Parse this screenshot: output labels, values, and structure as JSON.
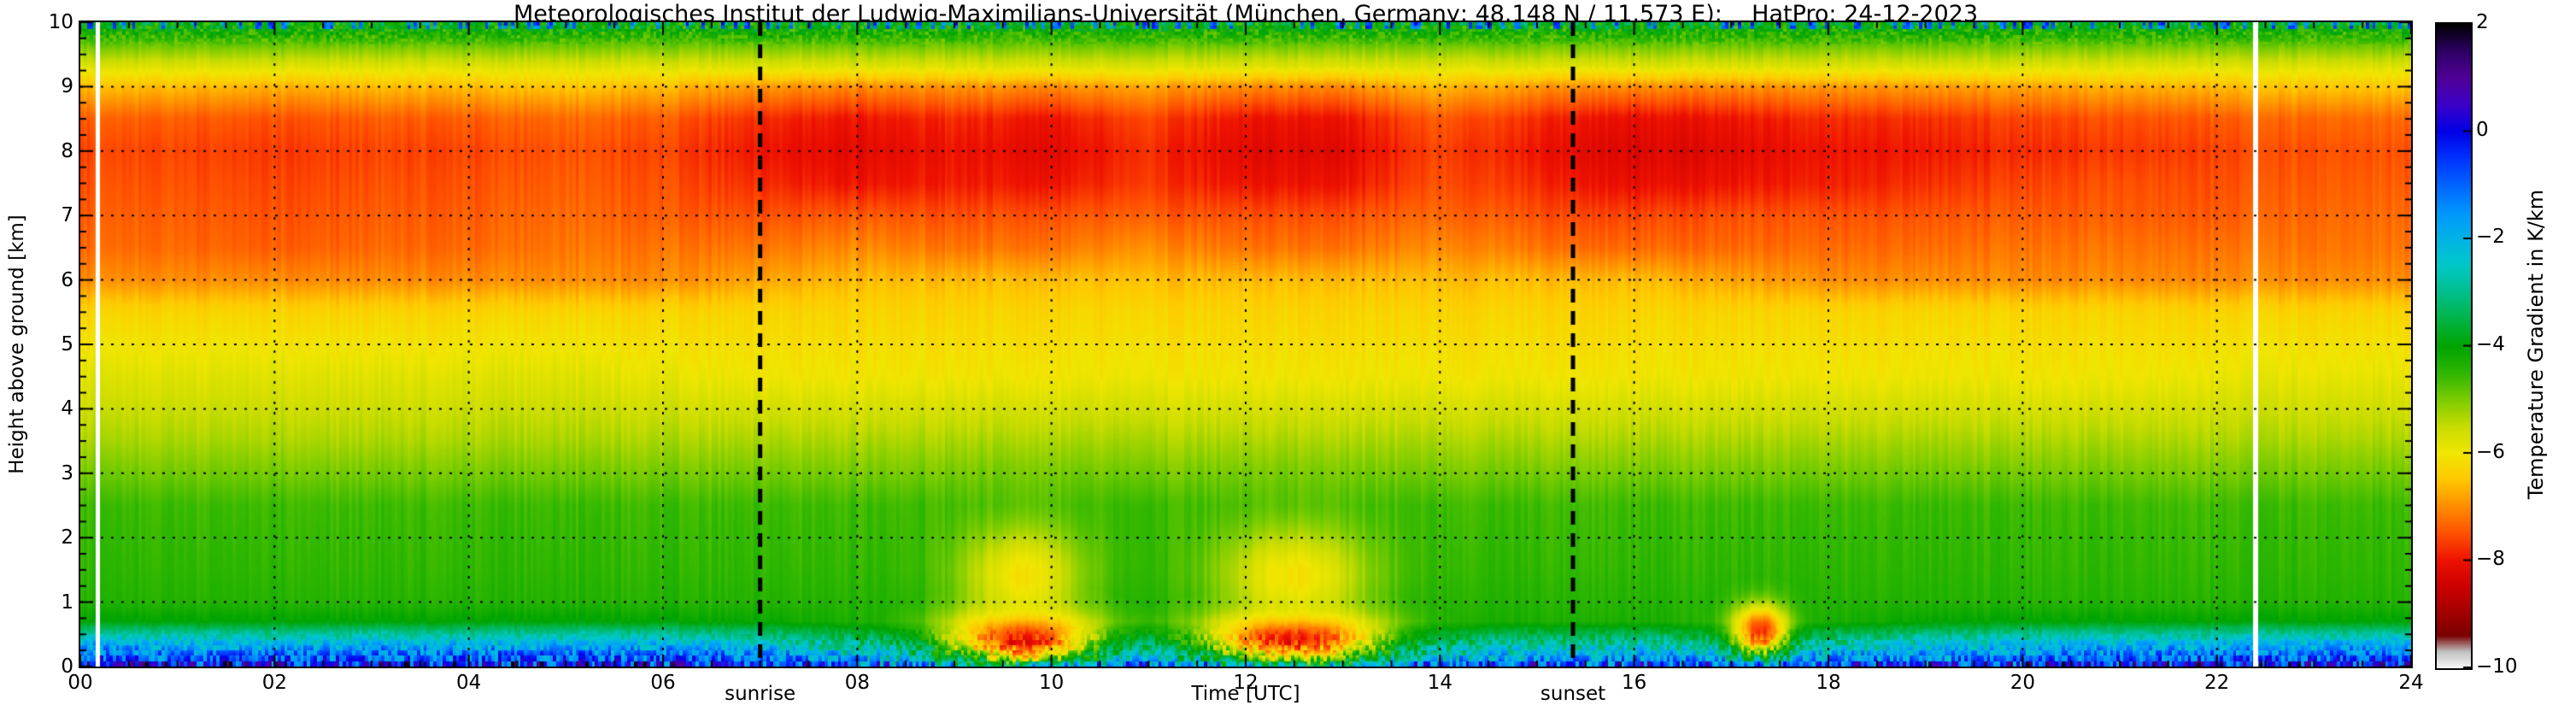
{
  "title": "Meteorologisches Institut der Ludwig-Maximilians-Universität (München, Germany; 48.148 N / 11.573 E):    HatPro: 24-12-2023",
  "axes": {
    "xlabel": "Time [UTC]",
    "ylabel": "Height above ground [km]",
    "x_ticks": [
      "00",
      "02",
      "04",
      "06",
      "08",
      "10",
      "12",
      "14",
      "16",
      "18",
      "20",
      "22",
      "24"
    ],
    "x_tick_values": [
      0,
      2,
      4,
      6,
      8,
      10,
      12,
      14,
      16,
      18,
      20,
      22,
      24
    ],
    "x_minor_step": 0.5,
    "y_ticks": [
      "0",
      "1",
      "2",
      "3",
      "4",
      "5",
      "6",
      "7",
      "8",
      "9",
      "10"
    ],
    "y_tick_values": [
      0,
      1,
      2,
      3,
      4,
      5,
      6,
      7,
      8,
      9,
      10
    ],
    "y_minor_step": 0.25
  },
  "colorbar": {
    "label": "Temperature Gradient in K/km",
    "tick_labels": [
      "2",
      "0",
      "−2",
      "−4",
      "−6",
      "−8",
      "−10"
    ],
    "tick_values": [
      2,
      0,
      -2,
      -4,
      -6,
      -8,
      -10
    ],
    "min": -10,
    "max": 2,
    "stops": [
      [
        -10.0,
        "#f5f5f5"
      ],
      [
        -9.7,
        "#c0c0c0"
      ],
      [
        -9.4,
        "#7a0000"
      ],
      [
        -9.0,
        "#a00000"
      ],
      [
        -8.5,
        "#cc0000"
      ],
      [
        -8.0,
        "#ee1100"
      ],
      [
        -7.5,
        "#ff5000"
      ],
      [
        -7.0,
        "#ff8c00"
      ],
      [
        -6.5,
        "#ffc800"
      ],
      [
        -6.0,
        "#f0e600"
      ],
      [
        -5.5,
        "#c8dc00"
      ],
      [
        -5.0,
        "#7ccc00"
      ],
      [
        -4.5,
        "#2db600"
      ],
      [
        -4.0,
        "#00a400"
      ],
      [
        -3.5,
        "#00b446"
      ],
      [
        -3.0,
        "#00be8c"
      ],
      [
        -2.5,
        "#00c8c8"
      ],
      [
        -2.0,
        "#00b4e6"
      ],
      [
        -1.5,
        "#0096ff"
      ],
      [
        -1.0,
        "#0064ff"
      ],
      [
        -0.5,
        "#0032ff"
      ],
      [
        0.0,
        "#0000e6"
      ],
      [
        0.5,
        "#3c00c8"
      ],
      [
        1.0,
        "#500096"
      ],
      [
        1.5,
        "#2d0064"
      ],
      [
        2.0,
        "#000000"
      ]
    ]
  },
  "annotations": {
    "sunrise": {
      "label": "sunrise",
      "time": 7.0
    },
    "sunset": {
      "label": "sunset",
      "time": 15.37
    }
  },
  "grid": {
    "x_lines": [
      2,
      4,
      6,
      8,
      10,
      12,
      14,
      16,
      18,
      20,
      22
    ],
    "y_lines": [
      1,
      2,
      3,
      4,
      5,
      6,
      7,
      8,
      9
    ]
  },
  "chart_data": {
    "type": "heatmap",
    "xlim": [
      0,
      24
    ],
    "ylim": [
      0,
      10
    ],
    "x_label": "Time [UTC]",
    "y_label": "Height above ground [km]",
    "value_label": "Temperature Gradient in K/km",
    "value_unit": "K/km",
    "times": [
      0,
      1,
      2,
      3,
      4,
      5,
      6,
      7,
      8,
      9,
      10,
      11,
      12,
      13,
      14,
      15,
      16,
      17,
      18,
      19,
      20,
      21,
      22,
      23,
      24
    ],
    "heights": [
      0.0,
      0.15,
      0.4,
      0.7,
      1.0,
      1.5,
      2.5,
      3.5,
      4.5,
      5.5,
      6.0,
      6.5,
      7.0,
      7.5,
      8.0,
      8.5,
      9.0,
      9.3,
      9.6,
      10.0
    ],
    "values": [
      [
        -0.4,
        -0.4,
        -0.4,
        -0.4,
        -0.4,
        -0.4,
        -0.4,
        -0.6,
        -1.2,
        -1.6,
        -1.6,
        -1.4,
        -1.6,
        -1.6,
        -1.2,
        -1.0,
        -1.0,
        -1.2,
        -1.0,
        -0.8,
        -0.6,
        -0.5,
        -0.4,
        -0.4,
        -0.4
      ],
      [
        -1.0,
        -1.0,
        -1.0,
        -1.0,
        -1.0,
        -1.0,
        -1.0,
        -1.2,
        -2.0,
        -2.6,
        -2.6,
        -2.2,
        -2.6,
        -2.6,
        -2.0,
        -1.8,
        -1.8,
        -2.0,
        -1.8,
        -1.5,
        -1.2,
        -1.1,
        -1.0,
        -1.0,
        -1.0
      ],
      [
        -2.2,
        -2.2,
        -2.3,
        -2.2,
        -2.3,
        -2.2,
        -2.3,
        -2.6,
        -3.2,
        -3.6,
        -3.6,
        -3.2,
        -3.6,
        -3.6,
        -3.2,
        -3.0,
        -3.0,
        -3.2,
        -3.0,
        -2.7,
        -2.4,
        -2.3,
        -2.2,
        -2.2,
        -2.2
      ],
      [
        -4.0,
        -4.0,
        -4.0,
        -4.0,
        -4.0,
        -4.0,
        -4.0,
        -4.1,
        -4.3,
        -4.5,
        -4.5,
        -4.4,
        -4.5,
        -4.5,
        -4.3,
        -4.3,
        -4.3,
        -4.4,
        -4.3,
        -4.1,
        -4.0,
        -4.0,
        -4.0,
        -4.0,
        -4.0
      ],
      [
        -4.4,
        -4.4,
        -4.4,
        -4.4,
        -4.4,
        -4.4,
        -4.4,
        -4.4,
        -4.4,
        -4.4,
        -4.4,
        -4.4,
        -4.4,
        -4.4,
        -4.4,
        -4.4,
        -4.4,
        -4.4,
        -4.4,
        -4.4,
        -4.4,
        -4.4,
        -4.4,
        -4.4,
        -4.4
      ],
      [
        -4.5,
        -4.5,
        -4.5,
        -4.5,
        -4.5,
        -4.5,
        -4.5,
        -4.5,
        -4.5,
        -4.5,
        -4.5,
        -4.5,
        -4.5,
        -4.5,
        -4.5,
        -4.5,
        -4.5,
        -4.5,
        -4.5,
        -4.5,
        -4.5,
        -4.5,
        -4.5,
        -4.5,
        -4.5
      ],
      [
        -4.6,
        -4.6,
        -4.6,
        -4.6,
        -4.6,
        -4.6,
        -4.6,
        -4.6,
        -4.6,
        -4.6,
        -4.6,
        -4.6,
        -4.6,
        -4.6,
        -4.6,
        -4.6,
        -4.6,
        -4.6,
        -4.6,
        -4.6,
        -4.6,
        -4.6,
        -4.6,
        -4.6,
        -4.6
      ],
      [
        -5.3,
        -5.3,
        -5.3,
        -5.3,
        -5.3,
        -5.3,
        -5.3,
        -5.3,
        -5.3,
        -5.3,
        -5.3,
        -5.3,
        -5.3,
        -5.3,
        -5.3,
        -5.3,
        -5.3,
        -5.3,
        -5.3,
        -5.3,
        -5.3,
        -5.3,
        -5.3,
        -5.3,
        -5.3
      ],
      [
        -5.8,
        -5.8,
        -5.8,
        -5.8,
        -5.8,
        -5.8,
        -5.9,
        -6.0,
        -6.0,
        -6.0,
        -6.0,
        -6.0,
        -6.0,
        -6.0,
        -6.0,
        -6.0,
        -6.0,
        -6.0,
        -6.0,
        -6.0,
        -6.0,
        -6.0,
        -5.9,
        -5.9,
        -5.9
      ],
      [
        -6.3,
        -6.3,
        -6.3,
        -6.3,
        -6.3,
        -6.3,
        -6.3,
        -6.3,
        -6.3,
        -6.3,
        -6.3,
        -6.3,
        -6.3,
        -6.3,
        -6.3,
        -6.3,
        -6.3,
        -6.3,
        -6.3,
        -6.3,
        -6.3,
        -6.3,
        -6.3,
        -6.3,
        -6.3
      ],
      [
        -7.0,
        -7.0,
        -7.0,
        -7.0,
        -7.0,
        -7.0,
        -7.0,
        -6.8,
        -6.6,
        -6.6,
        -6.6,
        -6.6,
        -6.6,
        -6.6,
        -6.6,
        -6.6,
        -6.6,
        -6.8,
        -7.0,
        -7.0,
        -7.0,
        -7.0,
        -7.0,
        -7.0,
        -7.0
      ],
      [
        -7.3,
        -7.3,
        -7.4,
        -7.3,
        -7.3,
        -7.2,
        -7.2,
        -7.2,
        -7.0,
        -7.2,
        -7.2,
        -7.0,
        -7.2,
        -7.2,
        -7.0,
        -7.2,
        -7.3,
        -7.3,
        -7.3,
        -7.3,
        -7.2,
        -7.2,
        -7.2,
        -7.2,
        -7.2
      ],
      [
        -7.4,
        -7.4,
        -7.5,
        -7.4,
        -7.4,
        -7.3,
        -7.4,
        -7.5,
        -7.4,
        -7.5,
        -7.5,
        -7.4,
        -7.5,
        -7.5,
        -7.3,
        -7.5,
        -7.6,
        -7.5,
        -7.5,
        -7.5,
        -7.4,
        -7.4,
        -7.4,
        -7.3,
        -7.3
      ],
      [
        -7.5,
        -7.5,
        -7.6,
        -7.5,
        -7.5,
        -7.4,
        -7.5,
        -7.8,
        -8.0,
        -7.9,
        -8.0,
        -7.7,
        -8.0,
        -8.0,
        -7.5,
        -7.8,
        -8.1,
        -8.0,
        -7.9,
        -7.8,
        -7.6,
        -7.5,
        -7.5,
        -7.4,
        -7.4
      ],
      [
        -7.6,
        -7.6,
        -7.7,
        -7.6,
        -7.6,
        -7.5,
        -7.6,
        -8.0,
        -8.2,
        -8.0,
        -8.2,
        -7.8,
        -8.2,
        -8.2,
        -7.6,
        -8.0,
        -8.3,
        -8.2,
        -8.0,
        -8.0,
        -7.8,
        -7.7,
        -7.6,
        -7.5,
        -7.5
      ],
      [
        -7.4,
        -7.4,
        -7.5,
        -7.4,
        -7.4,
        -7.3,
        -7.4,
        -7.8,
        -8.0,
        -7.8,
        -8.0,
        -7.6,
        -8.0,
        -8.0,
        -7.4,
        -7.8,
        -8.1,
        -8.0,
        -7.8,
        -7.8,
        -7.6,
        -7.5,
        -7.4,
        -7.3,
        -7.3
      ],
      [
        -6.6,
        -6.6,
        -6.7,
        -6.6,
        -6.6,
        -6.5,
        -6.6,
        -6.9,
        -7.0,
        -6.9,
        -7.0,
        -6.8,
        -7.0,
        -7.0,
        -6.6,
        -6.9,
        -7.0,
        -7.0,
        -6.9,
        -6.9,
        -6.8,
        -6.7,
        -6.6,
        -6.5,
        -6.5
      ],
      [
        -5.8,
        -5.8,
        -5.8,
        -5.8,
        -5.8,
        -5.8,
        -5.8,
        -5.8,
        -5.8,
        -5.8,
        -5.8,
        -5.8,
        -5.8,
        -5.8,
        -5.8,
        -5.8,
        -5.8,
        -5.8,
        -5.8,
        -5.8,
        -5.8,
        -5.8,
        -5.8,
        -5.8,
        -5.8
      ],
      [
        -5.0,
        -5.0,
        -5.0,
        -5.0,
        -5.0,
        -5.0,
        -5.0,
        -5.0,
        -5.0,
        -5.0,
        -5.0,
        -5.0,
        -5.0,
        -5.0,
        -5.0,
        -5.0,
        -5.0,
        -5.0,
        -5.0,
        -5.0,
        -5.0,
        -5.0,
        -5.0,
        -5.0,
        -5.0
      ],
      [
        -3.8,
        -3.8,
        -3.8,
        -3.8,
        -3.8,
        -3.8,
        -3.8,
        -3.8,
        -3.8,
        -3.8,
        -3.8,
        -3.8,
        -3.8,
        -3.8,
        -3.8,
        -3.8,
        -3.8,
        -3.8,
        -3.8,
        -3.8,
        -3.8,
        -3.8,
        -3.8,
        -3.8,
        -3.8
      ]
    ],
    "surface_features": [
      {
        "time": 9.7,
        "time_sigma": 0.5,
        "height": 0.45,
        "height_sigma": 0.28,
        "value": -8.4
      },
      {
        "time": 12.5,
        "time_sigma": 0.6,
        "height": 0.45,
        "height_sigma": 0.26,
        "value": -8.4
      },
      {
        "time": 17.3,
        "time_sigma": 0.2,
        "height": 0.55,
        "height_sigma": 0.28,
        "value": -7.8
      },
      {
        "time": 9.7,
        "time_sigma": 0.45,
        "height": 1.4,
        "height_sigma": 0.55,
        "value": -6.1
      },
      {
        "time": 12.5,
        "time_sigma": 0.55,
        "height": 1.4,
        "height_sigma": 0.55,
        "value": -6.1
      }
    ],
    "data_gaps": [
      0.18,
      22.4
    ],
    "noise": {
      "surface_amp": 1.5,
      "surface_top_km": 0.65,
      "top_amp": 0.9,
      "top_from_km": 9.6,
      "column_amp": 0.12
    }
  }
}
